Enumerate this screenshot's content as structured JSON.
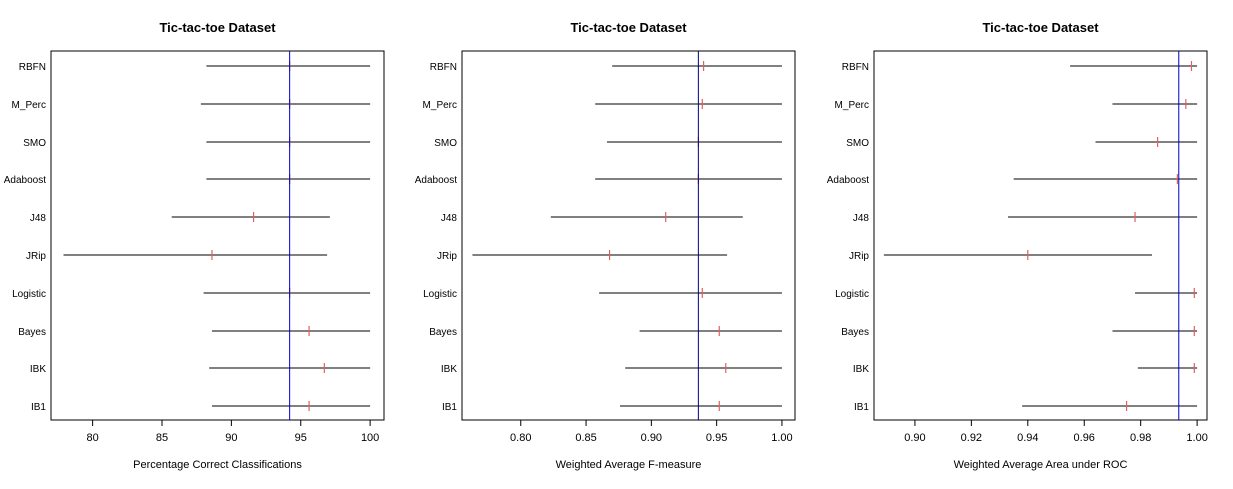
{
  "chart_data": [
    {
      "type": "errorbar",
      "title": "Tic-tac-toe Dataset",
      "xlabel": "Percentage Correct Classifications",
      "ylabel": "",
      "categories": [
        "RBFN",
        "M_Perc",
        "SMO",
        "Adaboost",
        "J48",
        "JRip",
        "Logistic",
        "Bayes",
        "IBK",
        "IB1"
      ],
      "xlim": [
        77,
        101
      ],
      "xticks": [
        80,
        85,
        90,
        95,
        100
      ],
      "xtick_labels": [
        "80",
        "85",
        "90",
        "95",
        "100"
      ],
      "reference_line": 94.2,
      "lower": [
        88.2,
        87.8,
        88.2,
        88.2,
        85.7,
        77.9,
        88.0,
        88.6,
        88.4,
        88.6
      ],
      "upper": [
        100,
        100,
        100,
        100,
        97.1,
        96.9,
        100,
        100,
        100,
        100
      ],
      "means": [
        94.2,
        94.2,
        94.2,
        94.2,
        91.6,
        88.6,
        94.2,
        95.6,
        96.7,
        95.6
      ],
      "colors": {
        "interval": "#000000",
        "mean": "#e06060",
        "reference": "#0000cc"
      }
    },
    {
      "type": "errorbar",
      "title": "Tic-tac-toe Dataset",
      "xlabel": "Weighted Average F-measure",
      "ylabel": "",
      "categories": [
        "RBFN",
        "M_Perc",
        "SMO",
        "Adaboost",
        "J48",
        "JRip",
        "Logistic",
        "Bayes",
        "IBK",
        "IB1"
      ],
      "xlim": [
        0.755,
        1.01
      ],
      "xticks": [
        0.8,
        0.85,
        0.9,
        0.95,
        1.0
      ],
      "xtick_labels": [
        "0.80",
        "0.85",
        "0.90",
        "0.95",
        "1.00"
      ],
      "reference_line": 0.936,
      "lower": [
        0.87,
        0.857,
        0.866,
        0.857,
        0.823,
        0.763,
        0.86,
        0.891,
        0.88,
        0.876
      ],
      "upper": [
        1.0,
        1.0,
        1.0,
        1.0,
        0.97,
        0.958,
        1.0,
        1.0,
        1.0,
        1.0
      ],
      "means": [
        0.94,
        0.939,
        0.936,
        0.936,
        0.911,
        0.868,
        0.939,
        0.952,
        0.957,
        0.952
      ],
      "colors": {
        "interval": "#000000",
        "mean": "#e06060",
        "reference": "#000080"
      }
    },
    {
      "type": "errorbar",
      "title": "Tic-tac-toe Dataset",
      "xlabel": "Weighted Average Area under ROC",
      "ylabel": "",
      "categories": [
        "RBFN",
        "M_Perc",
        "SMO",
        "Adaboost",
        "J48",
        "JRip",
        "Logistic",
        "Bayes",
        "IBK",
        "IB1"
      ],
      "xlim": [
        0.8855,
        1.0035
      ],
      "xticks": [
        0.9,
        0.92,
        0.94,
        0.96,
        0.98,
        1.0
      ],
      "xtick_labels": [
        "0.90",
        "0.92",
        "0.94",
        "0.96",
        "0.98",
        "1.00"
      ],
      "reference_line": 0.9935,
      "lower": [
        0.955,
        0.97,
        0.964,
        0.935,
        0.933,
        0.889,
        0.978,
        0.97,
        0.979,
        0.938
      ],
      "upper": [
        1.0,
        1.0,
        1.0,
        1.0,
        1.0,
        0.984,
        1.0,
        1.0,
        1.0,
        1.0
      ],
      "means": [
        0.998,
        0.996,
        0.986,
        0.993,
        0.978,
        0.94,
        0.999,
        0.999,
        0.999,
        0.975
      ],
      "colors": {
        "interval": "#000000",
        "mean": "#e06060",
        "reference": "#0000cc"
      }
    }
  ]
}
